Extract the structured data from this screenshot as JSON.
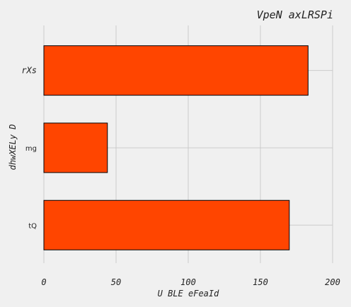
{
  "chart_data": {
    "type": "bar",
    "orientation": "horizontal",
    "title": "VpeN axLRSPi",
    "xlabel": "U BLE eFeaId",
    "ylabel": "dhwXELy D",
    "categories": [
      "rXs",
      "mg",
      "tQ"
    ],
    "values": [
      183,
      44,
      170
    ],
    "xlim": [
      0,
      200
    ],
    "xticks": [
      0,
      50,
      100,
      150,
      200
    ],
    "grid": true,
    "bar_color": "#ff4500"
  }
}
